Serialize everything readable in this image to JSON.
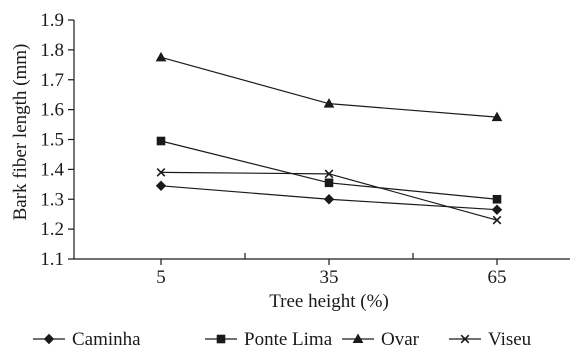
{
  "chart_data": {
    "type": "line",
    "x": [
      "5",
      "35",
      "65"
    ],
    "xlabel": "Tree height (%)",
    "ylabel": "Bark fiber length (mm)",
    "ylim": [
      1.1,
      1.9
    ],
    "yticks": [
      "1.1",
      "1.2",
      "1.3",
      "1.4",
      "1.5",
      "1.6",
      "1.7",
      "1.8",
      "1.9"
    ],
    "grid": false,
    "legend_position": "bottom",
    "series": [
      {
        "name": "Caminha",
        "marker": "diamond",
        "values": [
          1.345,
          1.3,
          1.265
        ]
      },
      {
        "name": "Ponte Lima",
        "marker": "square",
        "values": [
          1.495,
          1.355,
          1.3
        ]
      },
      {
        "name": "Ovar",
        "marker": "triangle",
        "values": [
          1.775,
          1.62,
          1.575
        ]
      },
      {
        "name": "Viseu",
        "marker": "cross",
        "values": [
          1.39,
          1.385,
          1.23
        ]
      }
    ]
  }
}
